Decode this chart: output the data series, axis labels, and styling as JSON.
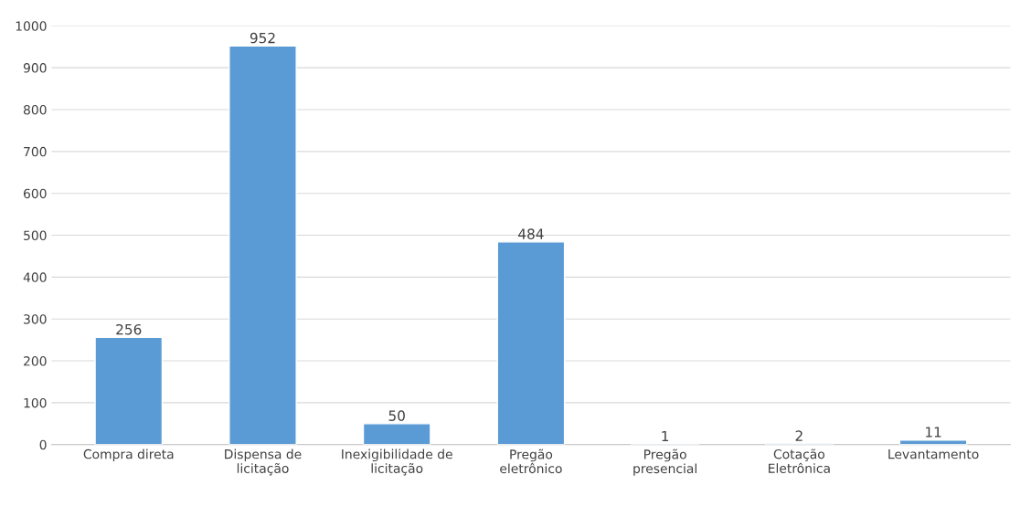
{
  "chart_data": {
    "type": "bar",
    "categories": [
      "Compra direta",
      "Dispensa de licitação",
      "Inexigibilidade de licitação",
      "Pregão eletrônico",
      "Pregão presencial",
      "Cotação Eletrônica",
      "Levantamento"
    ],
    "values": [
      256,
      952,
      50,
      484,
      1,
      2,
      11
    ],
    "color": "#5b9bd5",
    "ylim": [
      0,
      1000
    ],
    "yticks": [
      0,
      100,
      200,
      300,
      400,
      500,
      600,
      700,
      800,
      900,
      1000
    ],
    "grid": "y",
    "data_labels": true
  }
}
